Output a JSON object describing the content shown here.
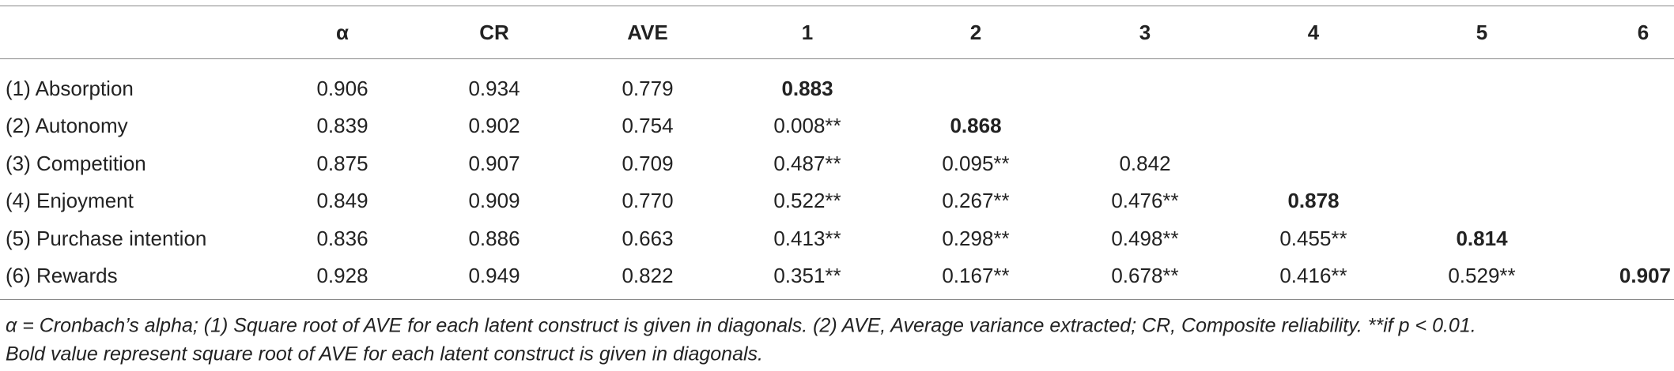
{
  "table": {
    "header": [
      "α",
      "CR",
      "AVE",
      "1",
      "2",
      "3",
      "4",
      "5",
      "6"
    ],
    "rows": [
      [
        "(1) Absorption",
        "0.906",
        "0.934",
        "0.779",
        "0.883"
      ],
      [
        "(2) Autonomy",
        "0.839",
        "0.902",
        "0.754",
        "0.008**",
        "0.868"
      ],
      [
        "(3) Competition",
        "0.875",
        "0.907",
        "0.709",
        "0.487**",
        "0.095**",
        "0.842"
      ],
      [
        "(4) Enjoyment",
        "0.849",
        "0.909",
        "0.770",
        "0.522**",
        "0.267**",
        "0.476**",
        "0.878"
      ],
      [
        "(5) Purchase intention",
        "0.836",
        "0.886",
        "0.663",
        "0.413**",
        "0.298**",
        "0.498**",
        "0.455**",
        "0.814"
      ],
      [
        "(6) Rewards",
        "0.928",
        "0.949",
        "0.822",
        "0.351**",
        "0.167**",
        "0.678**",
        "0.416**",
        "0.529**",
        "0.907"
      ]
    ]
  },
  "footnote": [
    "α = Cronbach’s alpha; (1) Square root of AVE for each latent construct is given in diagonals. (2) AVE, Average variance extracted; CR, Composite reliability. **if p < 0.01.",
    "Bold value represent square root of AVE for each latent construct is given in diagonals."
  ]
}
